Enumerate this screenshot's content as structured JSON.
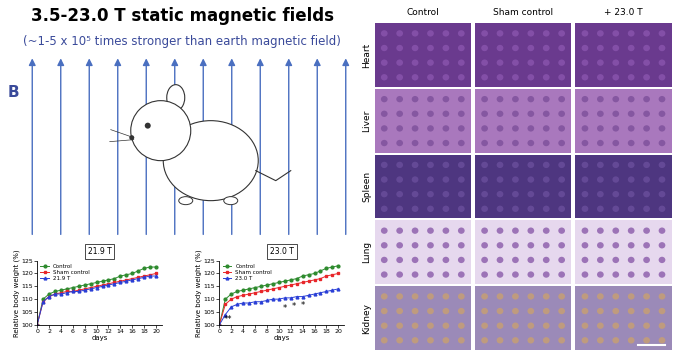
{
  "title": "3.5-23.0 T static magnetic fields",
  "subtitle": "(~1-5 x 10⁵ times stronger than earth magnetic field)",
  "panel_label": "B",
  "chart_data": [
    {
      "type": "line",
      "title": "21.9 T",
      "x_label": "days",
      "y_label": "Relative body weight (%)",
      "x": [
        0,
        1,
        2,
        3,
        4,
        5,
        6,
        7,
        8,
        9,
        10,
        11,
        12,
        13,
        14,
        15,
        16,
        17,
        18,
        19,
        20
      ],
      "xlim": [
        0,
        21
      ],
      "xticks": [
        0,
        2,
        4,
        6,
        8,
        10,
        12,
        14,
        16,
        18,
        20
      ],
      "ylim": [
        100,
        125
      ],
      "yticks": [
        100,
        105,
        110,
        115,
        120,
        125
      ],
      "legend": "upper left",
      "series": [
        {
          "name": "Control",
          "color": "#2e8b2e",
          "marker": "circle",
          "values": [
            100,
            110,
            112,
            113,
            113.5,
            114,
            114.5,
            115,
            115.5,
            116,
            116.5,
            117,
            117.5,
            118,
            119,
            119.5,
            120,
            121,
            122,
            122.5,
            122.5
          ]
        },
        {
          "name": "Sham control",
          "color": "#e8262a",
          "marker": "square",
          "values": [
            100,
            109,
            111,
            112,
            112.5,
            113,
            113,
            113.5,
            114,
            114.5,
            115,
            115.5,
            116,
            116.5,
            117,
            117.5,
            118,
            118.5,
            119,
            119.5,
            120
          ]
        },
        {
          "name": "21.9 T",
          "color": "#2a3fd6",
          "marker": "triangle",
          "values": [
            100,
            109,
            111,
            112,
            112,
            112.5,
            113,
            113,
            113.5,
            114,
            114.5,
            115,
            115.5,
            116,
            116.5,
            117,
            117.5,
            118,
            118.5,
            119,
            119
          ]
        }
      ]
    },
    {
      "type": "line",
      "title": "23.0 T",
      "x_label": "days",
      "y_label": "Relative body weight (%)",
      "x": [
        0,
        1,
        2,
        3,
        4,
        5,
        6,
        7,
        8,
        9,
        10,
        11,
        12,
        13,
        14,
        15,
        16,
        17,
        18,
        19,
        20
      ],
      "xlim": [
        0,
        21
      ],
      "xticks": [
        0,
        2,
        4,
        6,
        8,
        10,
        12,
        14,
        16,
        18,
        20
      ],
      "ylim": [
        100,
        125
      ],
      "yticks": [
        100,
        105,
        110,
        115,
        120,
        125
      ],
      "legend": "upper left",
      "series": [
        {
          "name": "Control",
          "color": "#2e8b2e",
          "marker": "circle",
          "values": [
            100,
            110,
            112,
            113,
            113.5,
            114,
            114.5,
            115,
            115.5,
            116,
            116.5,
            117,
            117.5,
            118,
            119,
            119.5,
            120,
            121,
            122,
            122.5,
            123
          ]
        },
        {
          "name": "Sham control",
          "color": "#e8262a",
          "marker": "square",
          "values": [
            100,
            108,
            110,
            111,
            111.5,
            112,
            112.5,
            113,
            113.5,
            114,
            114.5,
            115,
            115.5,
            116,
            116.5,
            117,
            117.5,
            118,
            119,
            119.5,
            120
          ]
        },
        {
          "name": "23.0 T",
          "color": "#2a3fd6",
          "marker": "triangle",
          "values": [
            100,
            104,
            107,
            108,
            108.5,
            108.5,
            109,
            109,
            109.5,
            110,
            110,
            110.5,
            110.5,
            111,
            111,
            111.5,
            112,
            112.5,
            113,
            113.5,
            114
          ]
        }
      ],
      "annotations": [
        {
          "text": "**",
          "x": 1.5,
          "y": 102
        },
        {
          "text": "*",
          "x": 11,
          "y": 106.5
        },
        {
          "text": "*",
          "x": 12.5,
          "y": 107
        },
        {
          "text": "*",
          "x": 14,
          "y": 107.5
        }
      ]
    }
  ],
  "histology": {
    "columns": [
      "Control",
      "Sham control",
      "+ 23.0 T"
    ],
    "rows": [
      "Heart",
      "Liver",
      "Spleen",
      "Lung",
      "Kidney"
    ]
  }
}
